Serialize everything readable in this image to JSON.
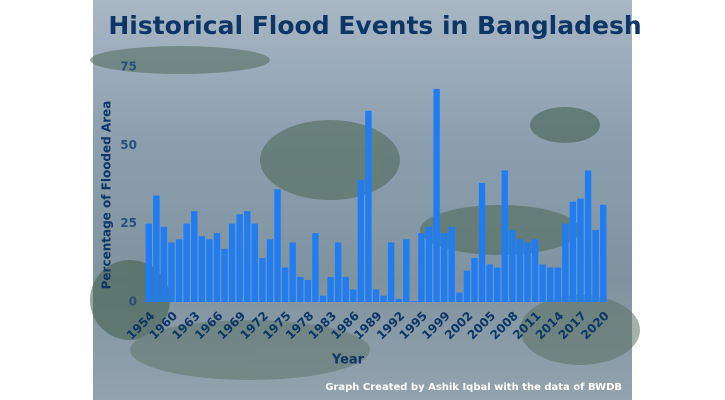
{
  "chart_data": {
    "type": "bar",
    "title": "Historical Flood Events in Bangladesh",
    "x_label": "Year",
    "y_label": "Percentage of Flooded Area",
    "annotation": "Graph Created by Ashik Iqbal with the data of BWDB",
    "color": "#1f7cf2",
    "categories": [
      "1954",
      null,
      null,
      "1960",
      null,
      null,
      "1963",
      null,
      null,
      "1966",
      null,
      null,
      "1969",
      null,
      null,
      "1972",
      null,
      null,
      "1975",
      null,
      null,
      "1978",
      null,
      null,
      "1983",
      null,
      null,
      "1986",
      null,
      null,
      "1989",
      null,
      null,
      "1992",
      null,
      null,
      "1995",
      null,
      null,
      "1999",
      null,
      null,
      "2002",
      null,
      null,
      "2005",
      null,
      null,
      "2008",
      null,
      null,
      "2011",
      null,
      null,
      "2014",
      null,
      null,
      "2017",
      null,
      null,
      "2020"
    ],
    "values": [
      25,
      34,
      24,
      19,
      20,
      25,
      29,
      21,
      20,
      22,
      17,
      25,
      28,
      29,
      25,
      14,
      20,
      36,
      11,
      19,
      8,
      7,
      22,
      2,
      8,
      19,
      8,
      4,
      39,
      61,
      4,
      2,
      19,
      1,
      20,
      0.3,
      22,
      24,
      68,
      22,
      24,
      3,
      10,
      14,
      38,
      12,
      11,
      42,
      23,
      20,
      19,
      20,
      12,
      11,
      11,
      25,
      32,
      33,
      42,
      23,
      31
    ],
    "ylim": [
      0,
      75
    ],
    "yticks": [
      0,
      25,
      50,
      75
    ]
  }
}
